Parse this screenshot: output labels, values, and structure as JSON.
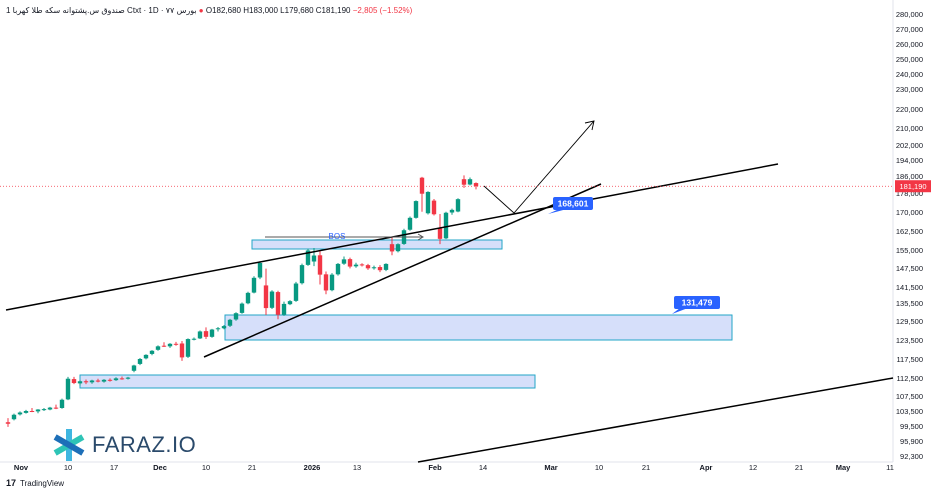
{
  "header": {
    "symbol": "1 صندوق س.پشتوانه سکه طلا کهربا Ctxt",
    "interval": "1D",
    "exchange": "بورس ٧٧",
    "open": "O182,680",
    "high": "H183,000",
    "low": "L179,680",
    "close": "C181,190",
    "change": "−2,805 (−1.52%)"
  },
  "footer": {
    "brand": "TradingView"
  },
  "logo": {
    "text": "FARAZ.IO"
  },
  "colors": {
    "up": "#089981",
    "down": "#f23645",
    "zone_fill": "#c8d4f8",
    "zone_border": "#22a6c7",
    "label_bg": "#2962ff"
  },
  "chart_data": {
    "type": "candlestick",
    "y_axis_labels": [
      "280,000",
      "270,000",
      "260,000",
      "250,000",
      "240,000",
      "230,000",
      "220,000",
      "210,000",
      "202,000",
      "194,000",
      "186,000",
      "178,000",
      "170,000",
      "162,500",
      "155,000",
      "147,500",
      "141,500",
      "135,500",
      "129,500",
      "123,500",
      "117,500",
      "112,500",
      "107,500",
      "103,500",
      "99,500",
      "95,900",
      "92,300"
    ],
    "x_axis_labels": [
      "Nov",
      "10",
      "17",
      "Dec",
      "10",
      "21",
      "2026",
      "13",
      "Feb",
      "14",
      "Mar",
      "10",
      "21",
      "Apr",
      "12",
      "21",
      "May",
      "11"
    ],
    "last_price_label": "181,190",
    "annotations": {
      "bos": "BOS",
      "target_1": "168,601",
      "target_2": "131,479"
    },
    "candles": [
      {
        "o": 100500,
        "h": 101600,
        "l": 99300,
        "c": 100100
      },
      {
        "o": 101300,
        "h": 102800,
        "l": 101000,
        "c": 102500
      },
      {
        "o": 102600,
        "h": 103400,
        "l": 102300,
        "c": 103100
      },
      {
        "o": 103000,
        "h": 103800,
        "l": 102800,
        "c": 103500
      },
      {
        "o": 103500,
        "h": 104300,
        "l": 103200,
        "c": 103400
      },
      {
        "o": 103400,
        "h": 104000,
        "l": 102900,
        "c": 103900
      },
      {
        "o": 103900,
        "h": 104300,
        "l": 103500,
        "c": 104000
      },
      {
        "o": 103900,
        "h": 104600,
        "l": 103700,
        "c": 104400
      },
      {
        "o": 104400,
        "h": 105200,
        "l": 104000,
        "c": 104300
      },
      {
        "o": 104300,
        "h": 106800,
        "l": 104100,
        "c": 106500
      },
      {
        "o": 106600,
        "h": 112800,
        "l": 106400,
        "c": 112300
      },
      {
        "o": 112200,
        "h": 112800,
        "l": 110800,
        "c": 111100
      },
      {
        "o": 111000,
        "h": 111900,
        "l": 110400,
        "c": 111600
      },
      {
        "o": 111600,
        "h": 112100,
        "l": 110800,
        "c": 111300
      },
      {
        "o": 111300,
        "h": 112000,
        "l": 110900,
        "c": 111800
      },
      {
        "o": 111800,
        "h": 112300,
        "l": 111300,
        "c": 111500
      },
      {
        "o": 111500,
        "h": 112200,
        "l": 111200,
        "c": 112000
      },
      {
        "o": 112000,
        "h": 112400,
        "l": 111500,
        "c": 111900
      },
      {
        "o": 111900,
        "h": 112700,
        "l": 111700,
        "c": 112400
      },
      {
        "o": 112400,
        "h": 112900,
        "l": 112000,
        "c": 112300
      },
      {
        "o": 112300,
        "h": 112800,
        "l": 112100,
        "c": 112600
      },
      {
        "o": 114400,
        "h": 116000,
        "l": 114000,
        "c": 115800
      },
      {
        "o": 116200,
        "h": 117800,
        "l": 115900,
        "c": 117500
      },
      {
        "o": 117700,
        "h": 119000,
        "l": 117400,
        "c": 118800
      },
      {
        "o": 119100,
        "h": 120300,
        "l": 118700,
        "c": 120100
      },
      {
        "o": 120400,
        "h": 121800,
        "l": 120100,
        "c": 121500
      },
      {
        "o": 121700,
        "h": 122800,
        "l": 121300,
        "c": 121500
      },
      {
        "o": 121500,
        "h": 122500,
        "l": 121000,
        "c": 122300
      },
      {
        "o": 122300,
        "h": 122900,
        "l": 121700,
        "c": 122100
      },
      {
        "o": 122400,
        "h": 123200,
        "l": 117000,
        "c": 118000
      },
      {
        "o": 118200,
        "h": 124000,
        "l": 117800,
        "c": 123800
      },
      {
        "o": 123900,
        "h": 124300,
        "l": 123400,
        "c": 123900
      },
      {
        "o": 124000,
        "h": 126500,
        "l": 123800,
        "c": 126200
      },
      {
        "o": 126300,
        "h": 127500,
        "l": 123800,
        "c": 124500
      },
      {
        "o": 124500,
        "h": 127000,
        "l": 124200,
        "c": 126800
      },
      {
        "o": 126900,
        "h": 127600,
        "l": 126200,
        "c": 127200
      },
      {
        "o": 127200,
        "h": 128200,
        "l": 126900,
        "c": 127900
      },
      {
        "o": 128000,
        "h": 130200,
        "l": 127600,
        "c": 129900
      },
      {
        "o": 130000,
        "h": 132400,
        "l": 129600,
        "c": 132100
      },
      {
        "o": 132200,
        "h": 135700,
        "l": 131900,
        "c": 135300
      },
      {
        "o": 135400,
        "h": 139700,
        "l": 135100,
        "c": 139300
      },
      {
        "o": 139400,
        "h": 144900,
        "l": 139100,
        "c": 144400
      },
      {
        "o": 144500,
        "h": 150300,
        "l": 144000,
        "c": 149600
      },
      {
        "o": 142000,
        "h": 147300,
        "l": 131500,
        "c": 133800
      },
      {
        "o": 133900,
        "h": 140300,
        "l": 133500,
        "c": 139800
      },
      {
        "o": 139600,
        "h": 140100,
        "l": 130100,
        "c": 131600
      },
      {
        "o": 131600,
        "h": 136000,
        "l": 131200,
        "c": 135200
      },
      {
        "o": 135100,
        "h": 136600,
        "l": 134800,
        "c": 136200
      },
      {
        "o": 136300,
        "h": 143100,
        "l": 135900,
        "c": 142600
      },
      {
        "o": 142700,
        "h": 149300,
        "l": 142300,
        "c": 148700
      },
      {
        "o": 148800,
        "h": 155500,
        "l": 148400,
        "c": 154800
      },
      {
        "o": 150200,
        "h": 155800,
        "l": 148300,
        "c": 152700
      },
      {
        "o": 152800,
        "h": 154700,
        "l": 142300,
        "c": 145400
      },
      {
        "o": 145500,
        "h": 146400,
        "l": 138800,
        "c": 140200
      },
      {
        "o": 140300,
        "h": 145900,
        "l": 139900,
        "c": 145400
      },
      {
        "o": 145500,
        "h": 149600,
        "l": 145100,
        "c": 149200
      },
      {
        "o": 149300,
        "h": 152300,
        "l": 148800,
        "c": 151100
      },
      {
        "o": 151200,
        "h": 151800,
        "l": 147400,
        "c": 148100
      },
      {
        "o": 148200,
        "h": 149700,
        "l": 147600,
        "c": 148900
      },
      {
        "o": 149000,
        "h": 149500,
        "l": 148100,
        "c": 148700
      },
      {
        "o": 148700,
        "h": 149200,
        "l": 146900,
        "c": 147400
      },
      {
        "o": 147500,
        "h": 148500,
        "l": 147000,
        "c": 147800
      },
      {
        "o": 147900,
        "h": 148700,
        "l": 146200,
        "c": 146800
      },
      {
        "o": 146900,
        "h": 149500,
        "l": 146500,
        "c": 149200
      },
      {
        "o": 157300,
        "h": 160000,
        "l": 152800,
        "c": 154400
      },
      {
        "o": 154500,
        "h": 157600,
        "l": 154000,
        "c": 157300
      },
      {
        "o": 157400,
        "h": 163400,
        "l": 157000,
        "c": 162800
      },
      {
        "o": 163000,
        "h": 168200,
        "l": 162600,
        "c": 167700
      },
      {
        "o": 167700,
        "h": 174900,
        "l": 167400,
        "c": 174600
      },
      {
        "o": 185200,
        "h": 185600,
        "l": 170100,
        "c": 177700
      },
      {
        "o": 169500,
        "h": 178800,
        "l": 169000,
        "c": 178500
      },
      {
        "o": 174800,
        "h": 175500,
        "l": 168600,
        "c": 169100
      },
      {
        "o": 163500,
        "h": 169200,
        "l": 157300,
        "c": 159400
      },
      {
        "o": 159600,
        "h": 170100,
        "l": 159300,
        "c": 169700
      },
      {
        "o": 169800,
        "h": 171400,
        "l": 168900,
        "c": 170900
      },
      {
        "o": 170200,
        "h": 175800,
        "l": 169900,
        "c": 175400
      },
      {
        "o": 184500,
        "h": 186300,
        "l": 180400,
        "c": 181900
      },
      {
        "o": 182000,
        "h": 185300,
        "l": 181600,
        "c": 184500
      },
      {
        "o": 182680,
        "h": 183000,
        "l": 179680,
        "c": 181190
      }
    ]
  }
}
